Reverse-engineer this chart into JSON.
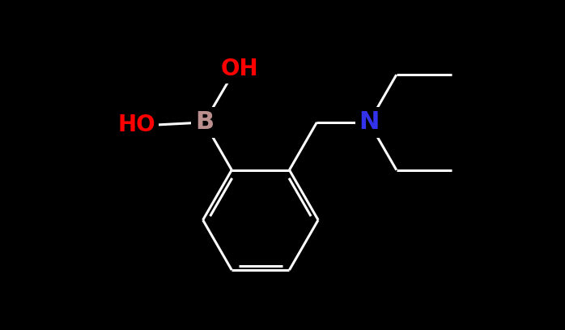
{
  "bg_color": "#000000",
  "bond_color": "#ffffff",
  "atom_colors": {
    "O": "#ff0000",
    "B": "#bc8f8f",
    "N": "#3333ee",
    "C": "#ffffff"
  },
  "font_size": 20,
  "lw": 2.2,
  "figsize": [
    6.98,
    4.07
  ],
  "dpi": 100,
  "xlim": [
    -3.5,
    5.5
  ],
  "ylim": [
    -3.2,
    2.8
  ]
}
